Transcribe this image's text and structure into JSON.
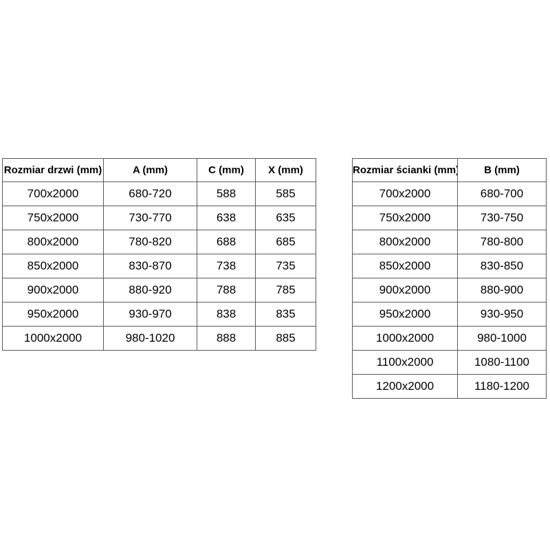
{
  "colors": {
    "background": "#ffffff",
    "table_border": "#595959",
    "text": "#000000"
  },
  "chart_data": [
    {
      "type": "table",
      "columns": [
        "Rozmiar drzwi (mm)",
        "A (mm)",
        "C (mm)",
        "X (mm)"
      ],
      "rows": [
        [
          "700x2000",
          "680-720",
          "588",
          "585"
        ],
        [
          "750x2000",
          "730-770",
          "638",
          "635"
        ],
        [
          "800x2000",
          "780-820",
          "688",
          "685"
        ],
        [
          "850x2000",
          "830-870",
          "738",
          "735"
        ],
        [
          "900x2000",
          "880-920",
          "788",
          "785"
        ],
        [
          "950x2000",
          "930-970",
          "838",
          "835"
        ],
        [
          "1000x2000",
          "980-1020",
          "888",
          "885"
        ]
      ]
    },
    {
      "type": "table",
      "columns": [
        "Rozmiar ścianki (mm)",
        "B (mm)"
      ],
      "rows": [
        [
          "700x2000",
          "680-700"
        ],
        [
          "750x2000",
          "730-750"
        ],
        [
          "800x2000",
          "780-800"
        ],
        [
          "850x2000",
          "830-850"
        ],
        [
          "900x2000",
          "880-900"
        ],
        [
          "950x2000",
          "930-950"
        ],
        [
          "1000x2000",
          "980-1000"
        ],
        [
          "1100x2000",
          "1080-1100"
        ],
        [
          "1200x2000",
          "1180-1200"
        ]
      ]
    }
  ]
}
